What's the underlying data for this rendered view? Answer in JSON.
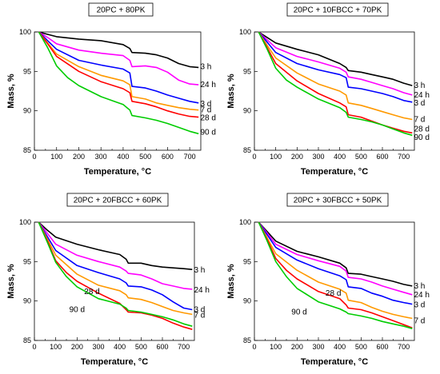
{
  "colors": {
    "3 h": "#000000",
    "24 h": "#ff00ff",
    "3 d": "#0000ff",
    "7 d": "#ff9900",
    "28 d": "#ff0000",
    "90 d": "#00cc00"
  },
  "chart_data": [
    {
      "type": "line",
      "title": "20PC + 80PK",
      "xlabel": "Temperature, °C",
      "ylabel": "Mass, %",
      "xlim": [
        0,
        750
      ],
      "ylim": [
        85,
        100
      ],
      "xticks": [
        0,
        100,
        200,
        300,
        400,
        500,
        600,
        700
      ],
      "yticks": [
        85,
        90,
        95,
        100
      ],
      "grid": false,
      "series": [
        {
          "name": "3 h",
          "label_pos": {
            "x": 748,
            "y": 95.6
          },
          "x": [
            20,
            60,
            100,
            200,
            300,
            400,
            430,
            440,
            500,
            550,
            600,
            650,
            700,
            740
          ],
          "y": [
            100,
            99.7,
            99.4,
            99.1,
            98.9,
            98.4,
            97.9,
            97.4,
            97.3,
            97.1,
            96.7,
            96.0,
            95.6,
            95.5
          ]
        },
        {
          "name": "24 h",
          "label_pos": {
            "x": 748,
            "y": 93.3
          },
          "x": [
            20,
            60,
            100,
            200,
            300,
            400,
            430,
            440,
            500,
            550,
            600,
            650,
            700,
            740
          ],
          "y": [
            100,
            99.3,
            98.5,
            97.7,
            97.3,
            97.0,
            96.4,
            95.6,
            95.7,
            95.5,
            94.9,
            93.9,
            93.4,
            93.3
          ]
        },
        {
          "name": "3 d",
          "label_pos": {
            "x": 748,
            "y": 90.9
          },
          "x": [
            20,
            60,
            100,
            200,
            300,
            400,
            430,
            440,
            500,
            550,
            600,
            650,
            700,
            740
          ],
          "y": [
            100,
            98.9,
            97.8,
            96.4,
            95.8,
            95.3,
            94.8,
            93.1,
            92.9,
            92.5,
            92.0,
            91.6,
            91.2,
            91.0
          ]
        },
        {
          "name": "7 d",
          "label_pos": {
            "x": 748,
            "y": 90.1
          },
          "x": [
            20,
            60,
            100,
            200,
            300,
            400,
            430,
            440,
            500,
            550,
            600,
            650,
            700,
            740
          ],
          "y": [
            100,
            98.6,
            97.2,
            95.6,
            94.5,
            93.8,
            93.3,
            91.8,
            91.5,
            91.0,
            90.7,
            90.4,
            90.2,
            90.1
          ]
        },
        {
          "name": "28 d",
          "label_pos": {
            "x": 748,
            "y": 89.1
          },
          "x": [
            20,
            60,
            100,
            200,
            300,
            400,
            430,
            440,
            500,
            550,
            600,
            650,
            700,
            740
          ],
          "y": [
            100,
            98.5,
            96.9,
            95.0,
            93.7,
            92.8,
            92.3,
            91.2,
            90.9,
            90.5,
            90.0,
            89.6,
            89.3,
            89.2
          ]
        },
        {
          "name": "90 d",
          "label_pos": {
            "x": 748,
            "y": 87.3
          },
          "x": [
            20,
            60,
            100,
            150,
            200,
            300,
            400,
            430,
            440,
            500,
            550,
            600,
            650,
            700,
            740
          ],
          "y": [
            100,
            98.0,
            95.7,
            94.2,
            93.2,
            91.8,
            90.8,
            90.1,
            89.4,
            89.1,
            88.8,
            88.4,
            87.9,
            87.4,
            87.1
          ]
        }
      ]
    },
    {
      "type": "line",
      "title": "20PC + 10FBCC + 70PK",
      "xlabel": "Temperature, °C",
      "ylabel": "Mass, %",
      "xlim": [
        0,
        750
      ],
      "ylim": [
        85,
        100
      ],
      "xticks": [
        0,
        100,
        200,
        300,
        400,
        500,
        600,
        700
      ],
      "yticks": [
        85,
        90,
        95,
        100
      ],
      "grid": false,
      "series": [
        {
          "name": "3 h",
          "label_pos": {
            "x": 748,
            "y": 93.2
          },
          "x": [
            20,
            60,
            100,
            200,
            300,
            400,
            430,
            440,
            500,
            550,
            600,
            650,
            700,
            740
          ],
          "y": [
            100,
            99.3,
            98.6,
            97.8,
            97.1,
            96.0,
            95.5,
            95.1,
            94.9,
            94.6,
            94.3,
            94.0,
            93.5,
            93.2
          ]
        },
        {
          "name": "24 h",
          "label_pos": {
            "x": 748,
            "y": 92.0
          },
          "x": [
            20,
            60,
            100,
            200,
            300,
            400,
            430,
            440,
            500,
            550,
            600,
            650,
            700,
            740
          ],
          "y": [
            100,
            99.0,
            98.0,
            96.9,
            96.2,
            95.4,
            94.9,
            94.3,
            94.0,
            93.6,
            93.2,
            92.8,
            92.3,
            92.0
          ]
        },
        {
          "name": "3 d",
          "label_pos": {
            "x": 748,
            "y": 91.0
          },
          "x": [
            20,
            60,
            100,
            200,
            300,
            400,
            430,
            440,
            500,
            550,
            600,
            650,
            700,
            740
          ],
          "y": [
            100,
            98.7,
            97.4,
            96.0,
            95.2,
            94.6,
            94.2,
            93.0,
            92.8,
            92.5,
            92.2,
            91.8,
            91.3,
            91.1
          ]
        },
        {
          "name": "7 d",
          "label_pos": {
            "x": 748,
            "y": 88.9
          },
          "x": [
            20,
            60,
            100,
            200,
            300,
            400,
            430,
            440,
            500,
            550,
            600,
            650,
            700,
            740
          ],
          "y": [
            100,
            98.3,
            96.7,
            94.8,
            93.4,
            92.5,
            92.0,
            91.0,
            90.7,
            90.3,
            89.9,
            89.5,
            89.1,
            88.9
          ]
        },
        {
          "name": "28 d",
          "label_pos": {
            "x": 748,
            "y": 87.7
          },
          "x": [
            20,
            60,
            100,
            200,
            300,
            400,
            430,
            440,
            500,
            550,
            600,
            650,
            700,
            740
          ],
          "y": [
            100,
            98.0,
            96.0,
            93.8,
            92.2,
            91.0,
            90.5,
            89.5,
            89.2,
            88.7,
            88.2,
            87.8,
            87.4,
            87.2
          ]
        },
        {
          "name": "90 d",
          "label_pos": {
            "x": 748,
            "y": 86.6
          },
          "x": [
            20,
            60,
            100,
            150,
            200,
            300,
            400,
            430,
            440,
            500,
            550,
            600,
            650,
            700,
            740
          ],
          "y": [
            100,
            97.8,
            95.4,
            93.9,
            93.0,
            91.5,
            90.4,
            89.8,
            89.2,
            88.9,
            88.6,
            88.2,
            87.7,
            87.2,
            86.9
          ]
        }
      ]
    },
    {
      "type": "line",
      "title": "20PC + 20FBCC + 60PK",
      "xlabel": "Temperature, °C",
      "ylabel": "Mass, %",
      "xlim": [
        0,
        750
      ],
      "ylim": [
        85,
        100
      ],
      "xticks": [
        0,
        100,
        200,
        300,
        400,
        500,
        600,
        700
      ],
      "yticks": [
        85,
        90,
        95,
        100
      ],
      "grid": false,
      "series": [
        {
          "name": "3 h",
          "label_pos": {
            "x": 748,
            "y": 93.9
          },
          "x": [
            20,
            60,
            100,
            200,
            300,
            400,
            430,
            440,
            500,
            550,
            600,
            650,
            700,
            740
          ],
          "y": [
            100,
            99.0,
            98.1,
            97.2,
            96.5,
            95.9,
            95.3,
            94.8,
            94.8,
            94.5,
            94.3,
            94.2,
            94.1,
            94.0
          ]
        },
        {
          "name": "24 h",
          "label_pos": {
            "x": 748,
            "y": 91.4
          },
          "x": [
            20,
            60,
            100,
            200,
            300,
            400,
            430,
            440,
            500,
            550,
            600,
            650,
            700,
            740
          ],
          "y": [
            100,
            98.6,
            97.2,
            95.8,
            95.0,
            94.3,
            93.8,
            93.5,
            93.3,
            92.8,
            92.2,
            91.9,
            91.6,
            91.5
          ]
        },
        {
          "name": "3 d",
          "label_pos": {
            "x": 748,
            "y": 88.9
          },
          "x": [
            20,
            60,
            100,
            200,
            300,
            400,
            430,
            440,
            500,
            550,
            600,
            650,
            700,
            740
          ],
          "y": [
            100,
            98.2,
            96.4,
            94.5,
            93.6,
            92.8,
            92.3,
            91.9,
            91.8,
            91.4,
            90.8,
            89.9,
            89.1,
            88.9
          ]
        },
        {
          "name": "7 d",
          "label_pos": {
            "x": 748,
            "y": 88.2
          },
          "x": [
            20,
            60,
            100,
            200,
            300,
            400,
            430,
            440,
            500,
            550,
            600,
            650,
            700,
            740
          ],
          "y": [
            100,
            97.9,
            95.8,
            93.4,
            92.0,
            91.3,
            90.8,
            90.4,
            90.2,
            89.8,
            89.3,
            88.8,
            88.5,
            88.3
          ]
        },
        {
          "name": "28 d",
          "label_pos": {
            "x": 270,
            "y": 91.2
          },
          "x": [
            20,
            60,
            100,
            150,
            200,
            300,
            400,
            430,
            440,
            500,
            550,
            600,
            650,
            700,
            740
          ],
          "y": [
            100,
            97.7,
            95.1,
            93.6,
            92.5,
            91.0,
            89.7,
            88.9,
            88.6,
            88.5,
            88.2,
            87.8,
            87.2,
            86.7,
            86.4
          ]
        },
        {
          "name": "90 d",
          "label_pos": {
            "x": 200,
            "y": 88.9
          },
          "x": [
            20,
            60,
            100,
            150,
            200,
            300,
            400,
            430,
            440,
            500,
            550,
            600,
            650,
            700,
            740
          ],
          "y": [
            100,
            97.5,
            94.9,
            93.1,
            91.8,
            90.3,
            89.6,
            89.1,
            88.8,
            88.6,
            88.3,
            88.0,
            87.6,
            87.1,
            86.8
          ]
        }
      ]
    },
    {
      "type": "line",
      "title": "20PC + 30FBCC + 50PK",
      "xlabel": "Temperature, °C",
      "ylabel": "Mass, %",
      "xlim": [
        0,
        750
      ],
      "ylim": [
        85,
        100
      ],
      "xticks": [
        0,
        100,
        200,
        300,
        400,
        500,
        600,
        700
      ],
      "yticks": [
        85,
        90,
        95,
        100
      ],
      "grid": false,
      "series": [
        {
          "name": "3 h",
          "label_pos": {
            "x": 748,
            "y": 91.9
          },
          "x": [
            20,
            60,
            100,
            200,
            300,
            400,
            430,
            440,
            500,
            550,
            600,
            650,
            700,
            740
          ],
          "y": [
            100,
            98.8,
            97.6,
            96.3,
            95.6,
            94.8,
            94.2,
            93.5,
            93.4,
            93.1,
            92.8,
            92.5,
            92.1,
            91.9
          ]
        },
        {
          "name": "24 h",
          "label_pos": {
            "x": 748,
            "y": 90.8
          },
          "x": [
            20,
            60,
            100,
            200,
            300,
            400,
            430,
            440,
            500,
            550,
            600,
            650,
            700,
            740
          ],
          "y": [
            100,
            98.6,
            97.2,
            95.9,
            95.1,
            94.4,
            93.8,
            93.0,
            92.8,
            92.4,
            91.9,
            91.5,
            91.1,
            90.8
          ]
        },
        {
          "name": "3 d",
          "label_pos": {
            "x": 748,
            "y": 89.5
          },
          "x": [
            20,
            60,
            100,
            200,
            300,
            400,
            430,
            440,
            500,
            550,
            600,
            650,
            700,
            740
          ],
          "y": [
            100,
            98.4,
            96.8,
            95.2,
            94.1,
            93.2,
            92.7,
            91.8,
            91.6,
            91.0,
            90.6,
            90.1,
            89.8,
            89.6
          ]
        },
        {
          "name": "7 d",
          "label_pos": {
            "x": 748,
            "y": 87.5
          },
          "x": [
            20,
            60,
            100,
            200,
            300,
            400,
            430,
            440,
            500,
            550,
            600,
            650,
            700,
            740
          ],
          "y": [
            100,
            98.0,
            96.0,
            93.9,
            92.4,
            91.5,
            91.0,
            90.1,
            89.8,
            89.2,
            88.7,
            88.3,
            88.0,
            87.8
          ]
        },
        {
          "name": "28 d",
          "label_pos": {
            "x": 370,
            "y": 91.0
          },
          "x": [
            20,
            60,
            100,
            150,
            200,
            300,
            400,
            430,
            440,
            500,
            550,
            600,
            650,
            700,
            740
          ],
          "y": [
            100,
            97.8,
            95.4,
            93.9,
            92.8,
            91.2,
            90.3,
            89.5,
            89.1,
            88.9,
            88.5,
            88.0,
            87.5,
            87.0,
            86.6
          ]
        },
        {
          "name": "90 d",
          "label_pos": {
            "x": 210,
            "y": 88.6
          },
          "x": [
            20,
            60,
            100,
            150,
            200,
            300,
            400,
            430,
            440,
            500,
            550,
            600,
            650,
            700,
            740
          ],
          "y": [
            100,
            97.6,
            95.0,
            93.1,
            91.6,
            89.9,
            89.0,
            88.6,
            88.4,
            88.1,
            87.8,
            87.4,
            87.1,
            86.8,
            86.5
          ]
        }
      ]
    }
  ]
}
